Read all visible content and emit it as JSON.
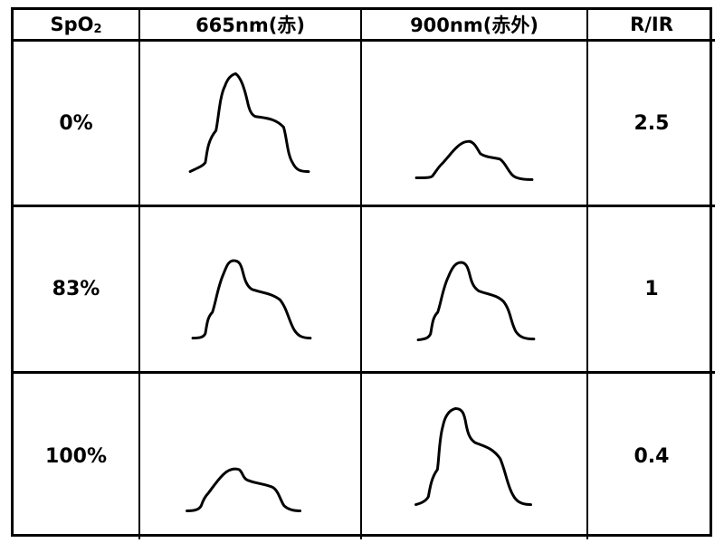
{
  "headers": {
    "spo2_main": "SpO",
    "spo2_sub": "2",
    "red": "665nm(赤)",
    "infrared": "900nm(赤外)",
    "ratio": "R/IR"
  },
  "rows": [
    {
      "spo2": "0%",
      "ratio": "2.5",
      "red_amplitude": "large",
      "ir_amplitude": "small"
    },
    {
      "spo2": "83%",
      "ratio": "1",
      "red_amplitude": "medium",
      "ir_amplitude": "medium"
    },
    {
      "spo2": "100%",
      "ratio": "0.4",
      "red_amplitude": "small",
      "ir_amplitude": "large"
    }
  ],
  "icons": {
    "waveform": "pulse-waveform-icon"
  }
}
